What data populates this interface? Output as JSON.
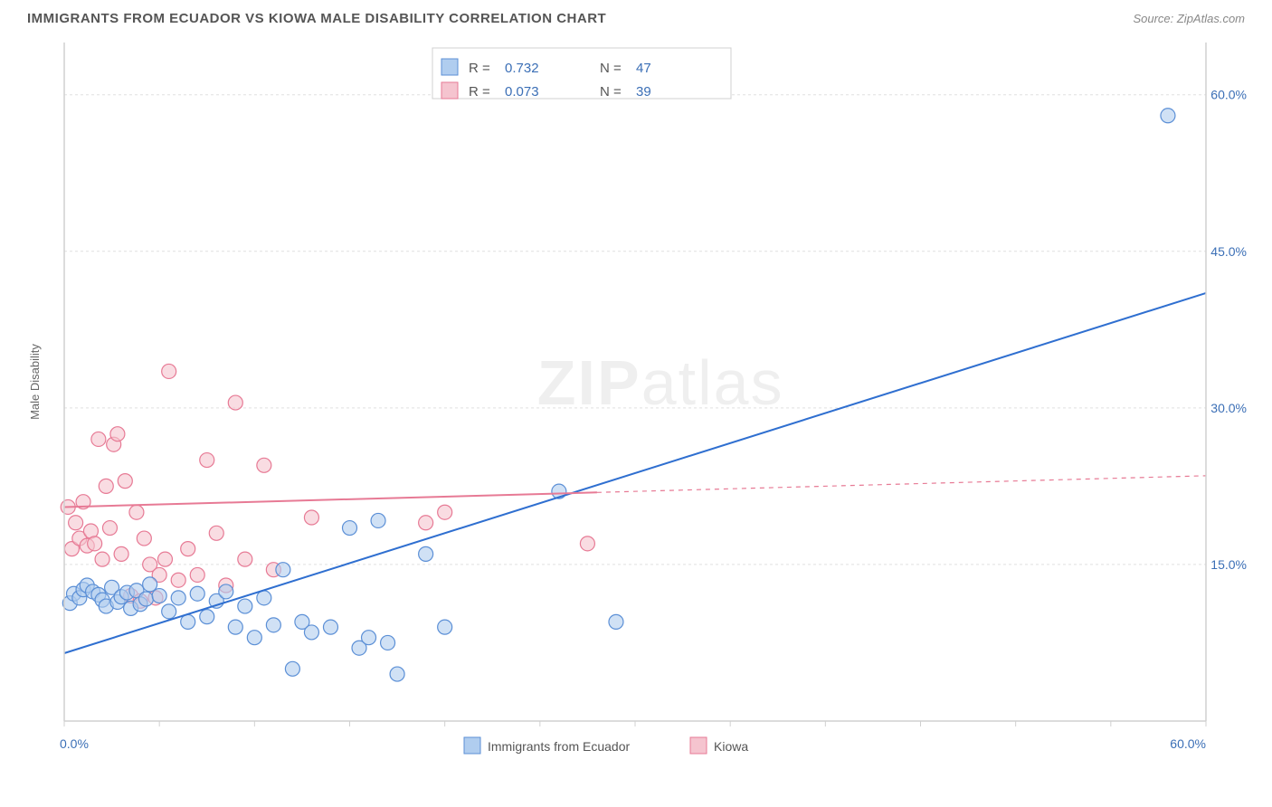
{
  "header": {
    "title": "IMMIGRANTS FROM ECUADOR VS KIOWA MALE DISABILITY CORRELATION CHART",
    "source": "Source: ZipAtlas.com"
  },
  "chart": {
    "type": "scatter",
    "background_color": "#ffffff",
    "grid_color": "#e0e0e0",
    "axis_color": "#d0d0d0",
    "ylabel": "Male Disability",
    "ylabel_color": "#666666",
    "ylabel_fontsize": 13,
    "xlim": [
      0,
      60
    ],
    "ylim": [
      0,
      65
    ],
    "x_ticks": [
      0,
      30,
      60
    ],
    "x_tick_labels": [
      "0.0%",
      "",
      "60.0%"
    ],
    "y_ticks": [
      15,
      30,
      45,
      60
    ],
    "y_tick_labels": [
      "15.0%",
      "30.0%",
      "45.0%",
      "60.0%"
    ],
    "tick_label_color": "#3b6fb6",
    "tick_label_fontsize": 14,
    "watermark": {
      "text_a": "ZIP",
      "text_b": "atlas"
    },
    "legend_stats": {
      "label_R": "R =",
      "label_N": "N =",
      "text_color": "#555555",
      "value_color": "#3b6fb6",
      "fontsize": 15,
      "rows": [
        {
          "swatch_fill": "#b0cdef",
          "swatch_stroke": "#5b8fd6",
          "R": "0.732",
          "N": "47"
        },
        {
          "swatch_fill": "#f5c4cf",
          "swatch_stroke": "#e77a95",
          "R": "0.073",
          "N": "39"
        }
      ]
    },
    "bottom_legend": {
      "fontsize": 14,
      "text_color": "#555555",
      "items": [
        {
          "swatch_fill": "#b0cdef",
          "swatch_stroke": "#5b8fd6",
          "label": "Immigrants from Ecuador"
        },
        {
          "swatch_fill": "#f5c4cf",
          "swatch_stroke": "#e77a95",
          "label": "Kiowa"
        }
      ]
    },
    "series": [
      {
        "name": "Immigrants from Ecuador",
        "marker_fill": "#b0cdef",
        "marker_stroke": "#5b8fd6",
        "marker_opacity": 0.6,
        "marker_r": 8,
        "line_color": "#2f6fd0",
        "line_width": 2,
        "regression": {
          "x1": 0,
          "y1": 6.5,
          "x2": 60,
          "y2": 41,
          "solid_until_x": 60
        },
        "points": [
          [
            0.3,
            11.3
          ],
          [
            0.5,
            12.2
          ],
          [
            0.8,
            11.8
          ],
          [
            1.0,
            12.6
          ],
          [
            1.2,
            13.0
          ],
          [
            1.5,
            12.4
          ],
          [
            1.8,
            12.1
          ],
          [
            2.0,
            11.6
          ],
          [
            2.2,
            11.0
          ],
          [
            2.5,
            12.8
          ],
          [
            2.8,
            11.4
          ],
          [
            3.0,
            11.9
          ],
          [
            3.3,
            12.3
          ],
          [
            3.5,
            10.8
          ],
          [
            3.8,
            12.5
          ],
          [
            4.0,
            11.2
          ],
          [
            4.3,
            11.7
          ],
          [
            4.5,
            13.1
          ],
          [
            5.0,
            12.0
          ],
          [
            5.5,
            10.5
          ],
          [
            6.0,
            11.8
          ],
          [
            6.5,
            9.5
          ],
          [
            7.0,
            12.2
          ],
          [
            7.5,
            10.0
          ],
          [
            8.0,
            11.5
          ],
          [
            8.5,
            12.4
          ],
          [
            9.0,
            9.0
          ],
          [
            9.5,
            11.0
          ],
          [
            10.0,
            8.0
          ],
          [
            10.5,
            11.8
          ],
          [
            11.0,
            9.2
          ],
          [
            11.5,
            14.5
          ],
          [
            12.0,
            5.0
          ],
          [
            12.5,
            9.5
          ],
          [
            13.0,
            8.5
          ],
          [
            14.0,
            9.0
          ],
          [
            15.0,
            18.5
          ],
          [
            15.5,
            7.0
          ],
          [
            16.0,
            8.0
          ],
          [
            16.5,
            19.2
          ],
          [
            17.0,
            7.5
          ],
          [
            17.5,
            4.5
          ],
          [
            19.0,
            16.0
          ],
          [
            20.0,
            9.0
          ],
          [
            26.0,
            22.0
          ],
          [
            29.0,
            9.5
          ],
          [
            58.0,
            58.0
          ]
        ]
      },
      {
        "name": "Kiowa",
        "marker_fill": "#f5c4cf",
        "marker_stroke": "#e77a95",
        "marker_opacity": 0.6,
        "marker_r": 8,
        "line_color": "#e77a95",
        "line_width": 2,
        "regression": {
          "x1": 0,
          "y1": 20.5,
          "x2": 60,
          "y2": 23.5,
          "solid_until_x": 28
        },
        "points": [
          [
            0.2,
            20.5
          ],
          [
            0.4,
            16.5
          ],
          [
            0.6,
            19.0
          ],
          [
            0.8,
            17.5
          ],
          [
            1.0,
            21.0
          ],
          [
            1.2,
            16.8
          ],
          [
            1.4,
            18.2
          ],
          [
            1.6,
            17.0
          ],
          [
            1.8,
            27.0
          ],
          [
            2.0,
            15.5
          ],
          [
            2.2,
            22.5
          ],
          [
            2.4,
            18.5
          ],
          [
            2.6,
            26.5
          ],
          [
            2.8,
            27.5
          ],
          [
            3.0,
            16.0
          ],
          [
            3.2,
            23.0
          ],
          [
            3.5,
            12.0
          ],
          [
            3.8,
            20.0
          ],
          [
            4.0,
            11.5
          ],
          [
            4.2,
            17.5
          ],
          [
            4.5,
            15.0
          ],
          [
            4.8,
            11.8
          ],
          [
            5.0,
            14.0
          ],
          [
            5.3,
            15.5
          ],
          [
            5.5,
            33.5
          ],
          [
            6.0,
            13.5
          ],
          [
            6.5,
            16.5
          ],
          [
            7.0,
            14.0
          ],
          [
            7.5,
            25.0
          ],
          [
            8.0,
            18.0
          ],
          [
            8.5,
            13.0
          ],
          [
            9.0,
            30.5
          ],
          [
            9.5,
            15.5
          ],
          [
            10.5,
            24.5
          ],
          [
            11.0,
            14.5
          ],
          [
            13.0,
            19.5
          ],
          [
            19.0,
            19.0
          ],
          [
            20.0,
            20.0
          ],
          [
            27.5,
            17.0
          ]
        ]
      }
    ]
  }
}
